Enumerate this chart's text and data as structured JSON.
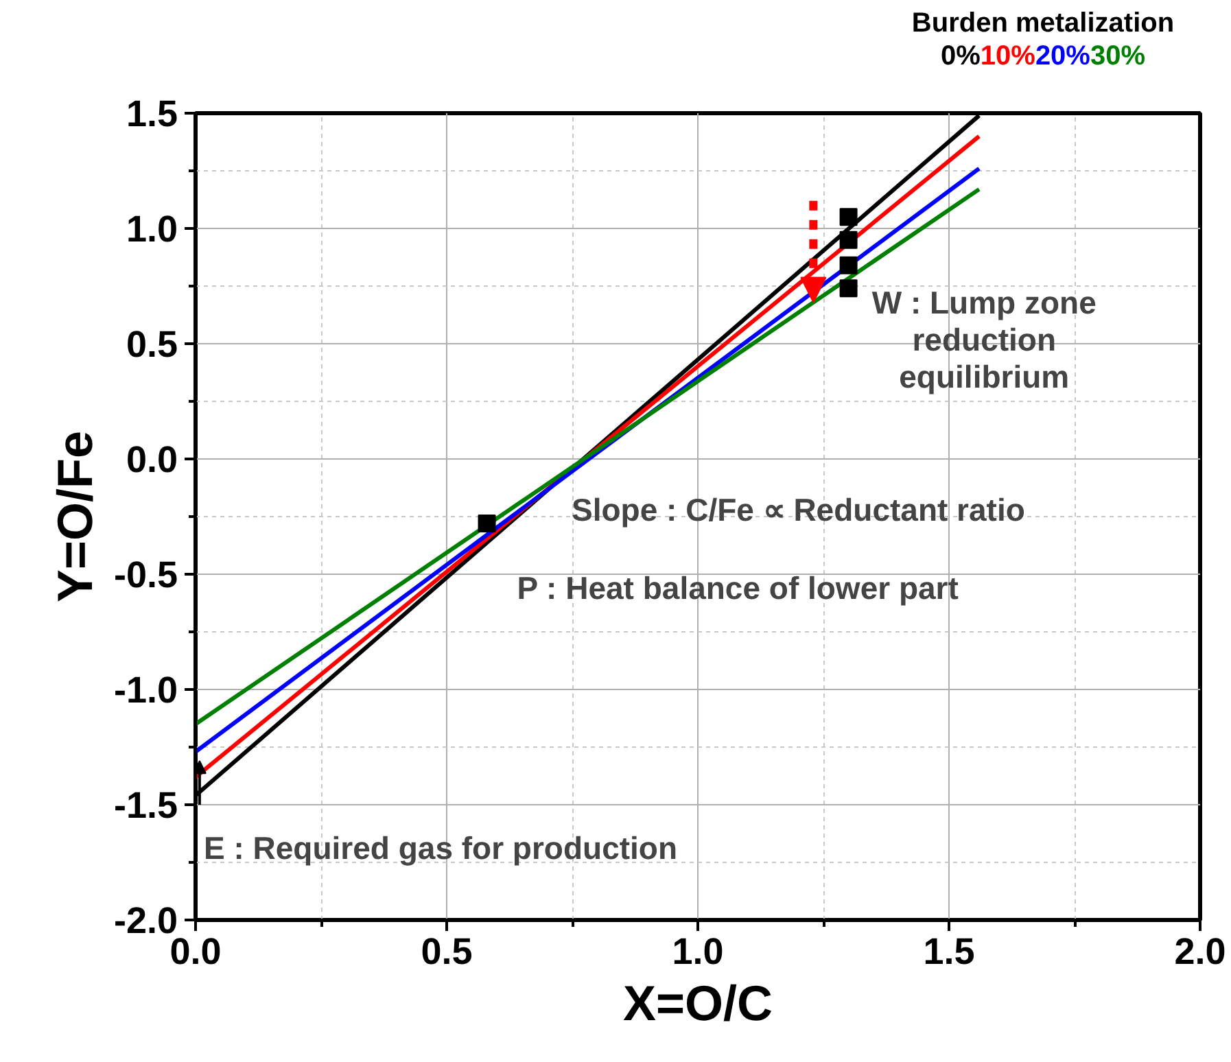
{
  "chart_data": {
    "type": "line",
    "xlabel": "X=O/C",
    "ylabel": "Y=O/Fe",
    "legend_title": "Burden metalization",
    "xlim": [
      0,
      2.0
    ],
    "ylim": [
      -2.0,
      1.5
    ],
    "xticks": [
      {
        "value": 0,
        "label": "0.0"
      },
      0.5,
      {
        "value": 1,
        "label": "1.0"
      },
      1.5,
      {
        "value": 2,
        "label": "2.0"
      }
    ],
    "yticks": [
      {
        "value": -2,
        "label": "-2.0"
      },
      -1.5,
      {
        "value": -1,
        "label": "-1.0"
      },
      -0.5,
      {
        "value": 0,
        "label": "0.0"
      },
      0.5,
      {
        "value": 1,
        "label": "1.0"
      },
      1.5
    ],
    "grid": true,
    "series": [
      {
        "name": "0%",
        "color": "#000000",
        "x": [
          0,
          1.56
        ],
        "values": [
          -1.46,
          1.49
        ]
      },
      {
        "name": "10%",
        "color": "#ff0000",
        "x": [
          0,
          1.56
        ],
        "values": [
          -1.38,
          1.4
        ]
      },
      {
        "name": "20%",
        "color": "#0000ff",
        "x": [
          0,
          1.56
        ],
        "values": [
          -1.27,
          1.26
        ]
      },
      {
        "name": "30%",
        "color": "#008000",
        "x": [
          0,
          1.56
        ],
        "values": [
          -1.15,
          1.17
        ]
      },
      {
        "type": "scatter",
        "color": "#000000",
        "marker": "square",
        "x": [
          1.3,
          1.3,
          1.3,
          1.3
        ],
        "values": [
          1.05,
          0.95,
          0.84,
          0.74
        ]
      },
      {
        "type": "scatter",
        "color": "#000000",
        "marker": "square",
        "x": [
          0.58
        ],
        "values": [
          -0.28
        ]
      }
    ],
    "annotations": [
      "W : Lump zone\nreduction\nequilibrium",
      "Slope : C/Fe ∝ Reductant ratio",
      "P : Heat balance of lower part",
      {
        "text": "E : Required gas for production",
        "x": 0,
        "y": -1.46
      }
    ]
  }
}
